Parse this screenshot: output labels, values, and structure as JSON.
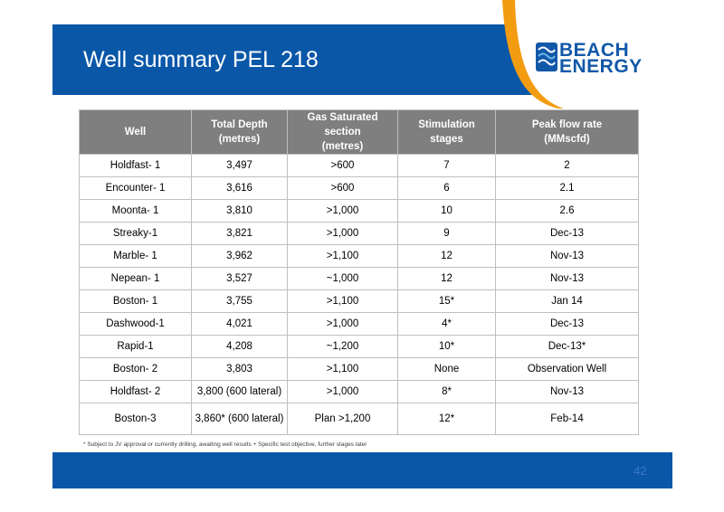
{
  "slide": {
    "title": "Well summary PEL 218",
    "page_number": "42",
    "footnote": "* Subject to JV approval or currently drilling, awaiting well results  + Specific test objective, further stages later"
  },
  "logo": {
    "line1": "BEACH",
    "line2": "ENERGY",
    "icon": "beach-energy-logo-mark",
    "brand_color": "#1258a8",
    "accent_color": "#f39c12"
  },
  "colors": {
    "band": "#0a57a8",
    "header_row": "#7f7f7f"
  },
  "table": {
    "headers": [
      "Well",
      "Total Depth\n(metres)",
      "Gas Saturated section\n(metres)",
      "Stimulation\nstages",
      "Peak flow rate\n(MMscfd)"
    ],
    "header_lines": [
      [
        "Well"
      ],
      [
        "Total Depth",
        "(metres)"
      ],
      [
        "Gas Saturated section",
        "(metres)"
      ],
      [
        "Stimulation",
        "stages"
      ],
      [
        "Peak flow rate",
        "(MMscfd)"
      ]
    ],
    "rows": [
      [
        "Holdfast- 1",
        "3,497",
        ">600",
        "7",
        "2"
      ],
      [
        "Encounter- 1",
        "3,616",
        ">600",
        "6",
        "2.1"
      ],
      [
        "Moonta- 1",
        "3,810",
        ">1,000",
        "10",
        "2.6"
      ],
      [
        "Streaky-1",
        "3,821",
        ">1,000",
        "9",
        "Dec-13"
      ],
      [
        "Marble- 1",
        "3,962",
        ">1,100",
        "12",
        "Nov-13"
      ],
      [
        "Nepean- 1",
        "3,527",
        "~1,000",
        "12",
        "Nov-13"
      ],
      [
        "Boston- 1",
        "3,755",
        ">1,100",
        "15*",
        "Jan 14"
      ],
      [
        "Dashwood-1",
        "4,021",
        ">1,000",
        "4*",
        "Dec-13"
      ],
      [
        "Rapid-1",
        "4,208",
        "~1,200",
        "10*",
        "Dec-13*"
      ],
      [
        "Boston- 2",
        "3,803",
        ">1,100",
        "None",
        "Observation Well"
      ],
      [
        "Holdfast- 2",
        "3,800 (600 lateral)",
        ">1,000",
        "8*",
        "Nov-13"
      ],
      [
        "Boston-3",
        "3,860* (600 lateral)",
        "Plan >1,200",
        "12*",
        "Feb-14"
      ]
    ]
  }
}
